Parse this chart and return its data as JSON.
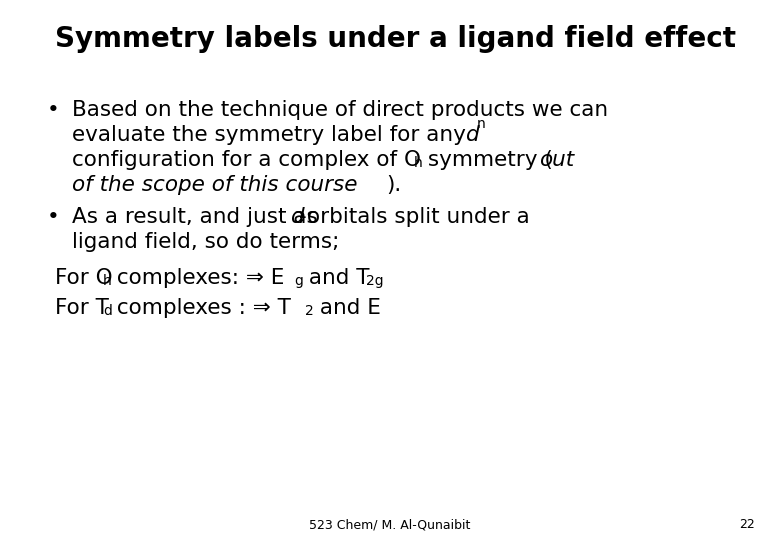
{
  "title": "Symmetry labels under a ligand field effect",
  "background_color": "#ffffff",
  "title_fontsize": 20,
  "body_fontsize": 15.5,
  "sub_fontsize": 10,
  "footer_text": "523 Chem/ M. Al-Qunaibit",
  "footer_page": "22"
}
